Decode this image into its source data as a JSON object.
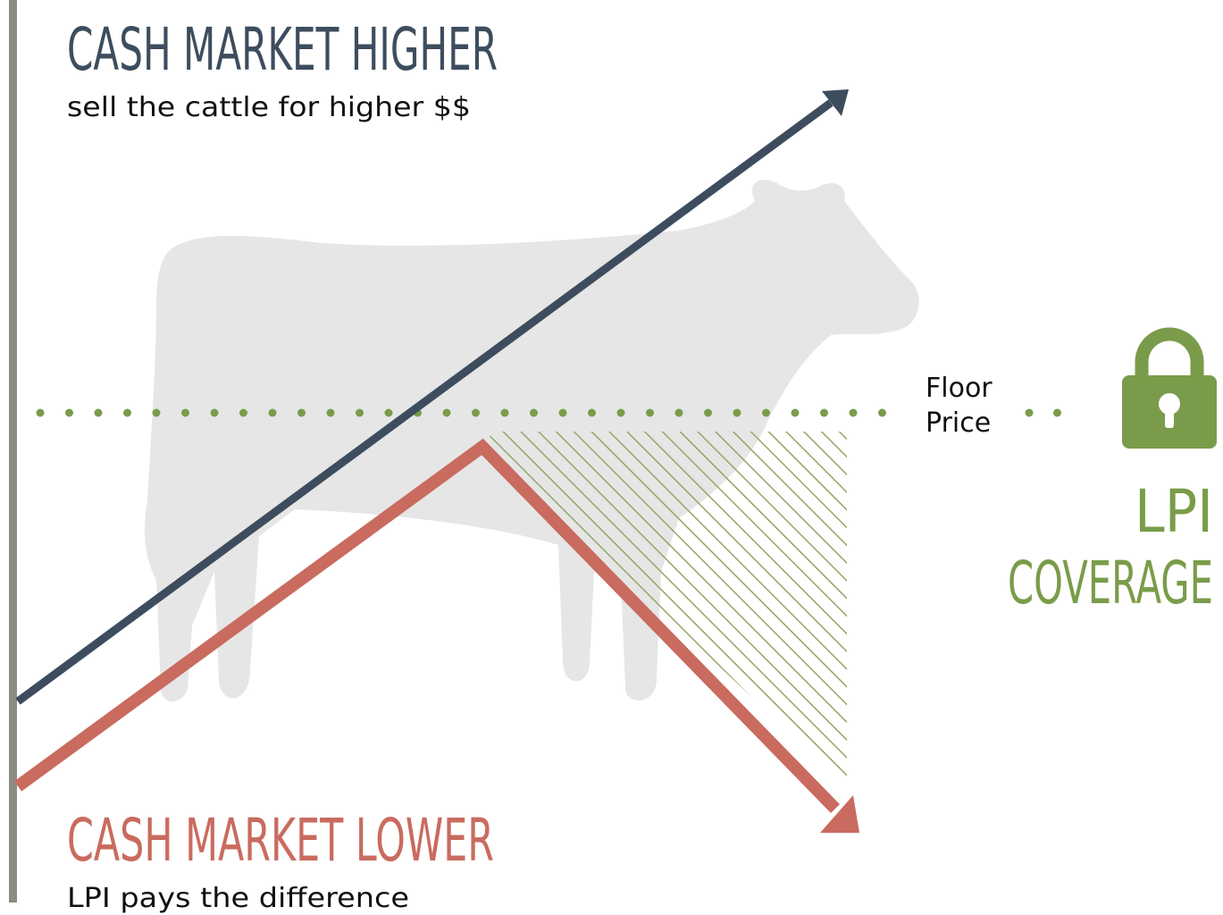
{
  "upper": {
    "title": "CASH MARKET HIGHER",
    "subtitle": "sell the cattle for higher $$"
  },
  "lower": {
    "title": "CASH MARKET LOWER",
    "subtitle": "LPI pays the difference"
  },
  "floor": {
    "line1": "Floor",
    "line2": "Price"
  },
  "coverage": {
    "line1": "LPI",
    "line2": "COVERAGE"
  }
}
